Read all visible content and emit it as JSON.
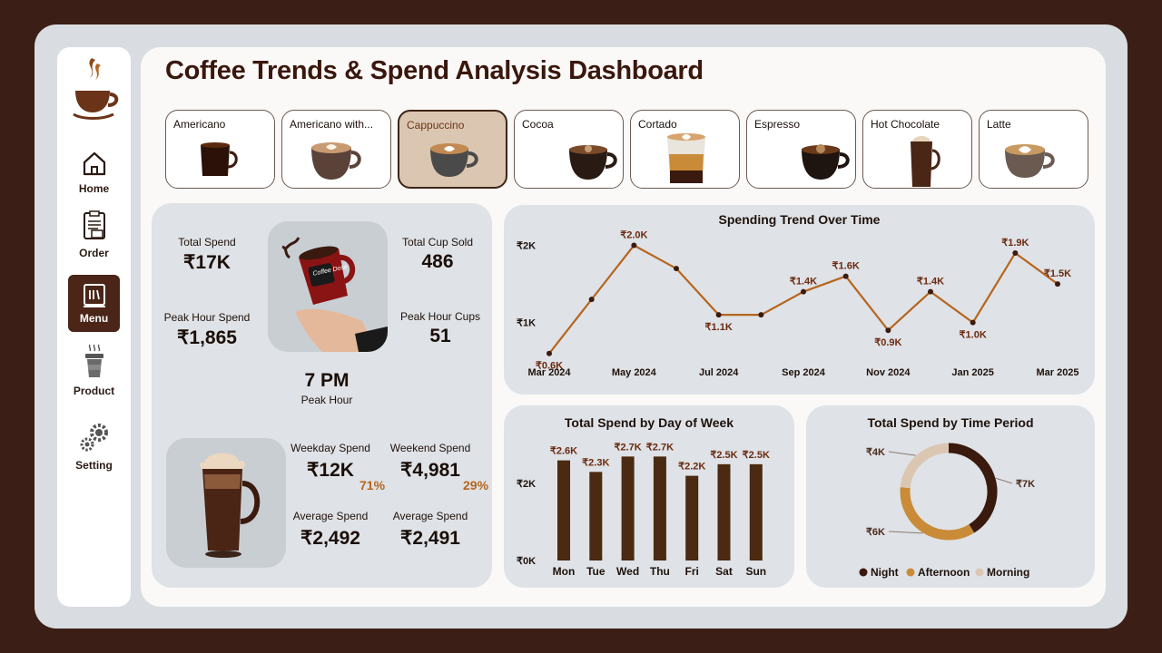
{
  "sidebar": {
    "items": [
      {
        "label": "Home",
        "icon": "home-icon"
      },
      {
        "label": "Order",
        "icon": "order-icon"
      },
      {
        "label": "Menu",
        "icon": "menu-icon",
        "active": true
      },
      {
        "label": "Product",
        "icon": "product-icon"
      },
      {
        "label": "Setting",
        "icon": "gear-icon"
      }
    ]
  },
  "header": {
    "title": "Coffee Trends & Spend Analysis Dashboard"
  },
  "coffee_types": [
    {
      "label": "Americano",
      "active": false
    },
    {
      "label": "Americano with...",
      "active": false
    },
    {
      "label": "Cappuccino",
      "active": true
    },
    {
      "label": "Cocoa",
      "active": false
    },
    {
      "label": "Cortado",
      "active": false
    },
    {
      "label": "Espresso",
      "active": false
    },
    {
      "label": "Hot Chocolate",
      "active": false
    },
    {
      "label": "Latte",
      "active": false
    }
  ],
  "kpis": {
    "total_spend": {
      "label": "Total Spend",
      "value": "₹17K"
    },
    "total_cups": {
      "label": "Total Cup Sold",
      "value": "486"
    },
    "peak_hour_spend": {
      "label": "Peak Hour Spend",
      "value": "₹1,865"
    },
    "peak_hour_cups": {
      "label": "Peak Hour Cups",
      "value": "51"
    },
    "peak_hour": {
      "label": "Peak Hour",
      "value": "7 PM"
    },
    "cup_logo_text": "Coffee Dose"
  },
  "split": {
    "weekday": {
      "label": "Weekday Spend",
      "value": "₹12K",
      "pct": "71%"
    },
    "weekend": {
      "label": "Weekend Spend",
      "value": "₹4,981",
      "pct": "29%"
    },
    "avg_weekday": {
      "label": "Average Spend",
      "value": "₹2,492"
    },
    "avg_weekend": {
      "label": "Average Spend",
      "value": "₹2,491"
    }
  },
  "colors": {
    "accent": "#b5651d",
    "dark": "#3a170c",
    "bar": "#4a2a10",
    "panel": "#dfe2e6"
  },
  "chart_data": [
    {
      "type": "line",
      "title": "Spending Trend Over Time",
      "x": [
        "Mar 2024",
        "Apr 2024",
        "May 2024",
        "Jun 2024",
        "Jul 2024",
        "Aug 2024",
        "Sep 2024",
        "Oct 2024",
        "Nov 2024",
        "Dec 2024",
        "Jan 2025",
        "Feb 2025",
        "Mar 2025"
      ],
      "x_tick_labels": [
        "Mar 2024",
        "May 2024",
        "Jul 2024",
        "Sep 2024",
        "Nov 2024",
        "Jan 2025",
        "Mar 2025"
      ],
      "values": [
        0.6,
        1.3,
        2.0,
        1.7,
        1.1,
        1.1,
        1.4,
        1.6,
        0.9,
        1.4,
        1.0,
        1.9,
        1.5
      ],
      "data_labels": [
        "₹0.6K",
        "",
        "₹2.0K",
        "",
        "₹1.1K",
        "",
        "₹1.4K",
        "₹1.6K",
        "₹0.9K",
        "₹1.4K",
        "₹1.0K",
        "₹1.9K",
        "₹1.5K"
      ],
      "y_tick_labels": [
        "₹1K",
        "₹2K"
      ],
      "y_ticks": [
        1,
        2
      ],
      "ylim": [
        0.55,
        2.1
      ],
      "ylabel": "",
      "xlabel": "",
      "color": "#b5651d"
    },
    {
      "type": "bar",
      "title": "Total Spend by Day of Week",
      "categories": [
        "Mon",
        "Tue",
        "Wed",
        "Thu",
        "Fri",
        "Sat",
        "Sun"
      ],
      "values": [
        2.6,
        2.3,
        2.7,
        2.7,
        2.2,
        2.5,
        2.5
      ],
      "data_labels": [
        "₹2.6K",
        "₹2.3K",
        "₹2.7K",
        "₹2.7K",
        "₹2.2K",
        "₹2.5K",
        "₹2.5K"
      ],
      "y_tick_labels": [
        "₹0K",
        "₹2K"
      ],
      "y_ticks": [
        0,
        2
      ],
      "ylim": [
        0,
        2.85
      ],
      "ylabel": "",
      "xlabel": "",
      "color": "#4a2a10"
    },
    {
      "type": "pie",
      "title": "Total Spend by Time Period",
      "labels": [
        "Night",
        "Afternoon",
        "Morning"
      ],
      "values": [
        7,
        6,
        4
      ],
      "data_labels": [
        "₹7K",
        "₹6K",
        "₹4K"
      ],
      "colors": [
        "#3a1a0e",
        "#c98b38",
        "#dbc7b1"
      ],
      "legend": "bottom"
    }
  ]
}
